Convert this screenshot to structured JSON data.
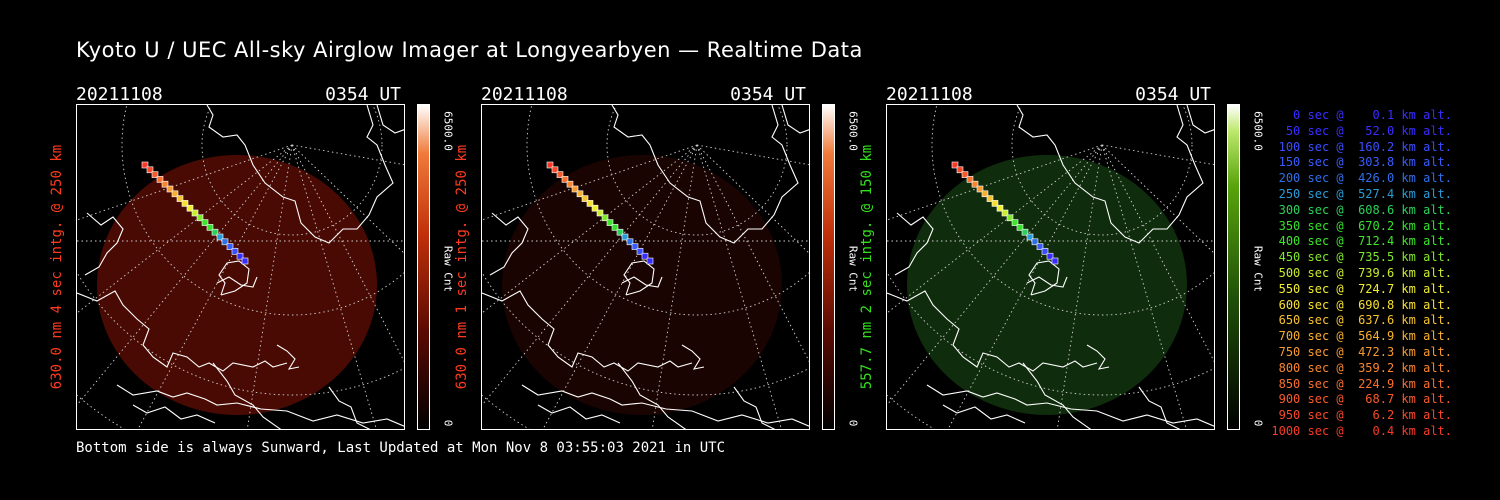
{
  "title": "Kyoto U / UEC All-sky Airglow Imager at Longyearbyen — Realtime Data",
  "footer": "Bottom side is always Sunward, Last Updated at Mon Nov  8 03:55:03 2021 in UTC",
  "panels": [
    {
      "date": "20211108",
      "time": "0354 UT",
      "side_label": "630.0 nm 4 sec intg. @ 250 km",
      "label_color": "#ff3b1f",
      "colorbar_max": "6500.0",
      "colorbar_min": "0",
      "colorbar_label": "Raw Cnt",
      "colormap": "red",
      "sky_color": "#4a0a04"
    },
    {
      "date": "20211108",
      "time": "0354 UT",
      "side_label": "630.0 nm 1 sec intg. @ 250 km",
      "label_color": "#ff3b1f",
      "colorbar_max": "6500.0",
      "colorbar_min": "0",
      "colorbar_label": "Raw Cnt",
      "colormap": "red",
      "sky_color": "#1a0402"
    },
    {
      "date": "20211108",
      "time": "0354 UT",
      "side_label": "557.7 nm 2 sec intg. @ 150 km",
      "label_color": "#33e01c",
      "colorbar_max": "6500.0",
      "colorbar_min": "0",
      "colorbar_label": "Raw Cnt",
      "colormap": "green",
      "sky_color": "#0f2c0c"
    }
  ],
  "legend": [
    {
      "text": "   0 sec @    0.1 km alt.",
      "color": "#3a2dff"
    },
    {
      "text": "  50 sec @   52.0 km alt.",
      "color": "#3a2dff"
    },
    {
      "text": " 100 sec @  160.2 km alt.",
      "color": "#3a4dff"
    },
    {
      "text": " 150 sec @  303.8 km alt.",
      "color": "#3a5cff"
    },
    {
      "text": " 200 sec @  426.0 km alt.",
      "color": "#2f6fe8"
    },
    {
      "text": " 250 sec @  527.4 km alt.",
      "color": "#2a9bd8"
    },
    {
      "text": " 300 sec @  608.6 km alt.",
      "color": "#2cd05a"
    },
    {
      "text": " 350 sec @  670.2 km alt.",
      "color": "#36e02c"
    },
    {
      "text": " 400 sec @  712.4 km alt.",
      "color": "#3de52c"
    },
    {
      "text": " 450 sec @  735.5 km alt.",
      "color": "#7fe82c"
    },
    {
      "text": " 500 sec @  739.6 km alt.",
      "color": "#c8ec2e"
    },
    {
      "text": " 550 sec @  724.7 km alt.",
      "color": "#f0ee30"
    },
    {
      "text": " 600 sec @  690.8 km alt.",
      "color": "#f8e030"
    },
    {
      "text": " 650 sec @  637.6 km alt.",
      "color": "#f8c430"
    },
    {
      "text": " 700 sec @  564.9 km alt.",
      "color": "#f8b030"
    },
    {
      "text": " 750 sec @  472.3 km alt.",
      "color": "#f89a30"
    },
    {
      "text": " 800 sec @  359.2 km alt.",
      "color": "#f88530"
    },
    {
      "text": " 850 sec @  224.9 km alt.",
      "color": "#f87030"
    },
    {
      "text": " 900 sec @   68.7 km alt.",
      "color": "#f85a2c"
    },
    {
      "text": " 950 sec @    6.2 km alt.",
      "color": "#f8482a"
    },
    {
      "text": "1000 sec @    0.4 km alt.",
      "color": "#f83a28"
    }
  ]
}
